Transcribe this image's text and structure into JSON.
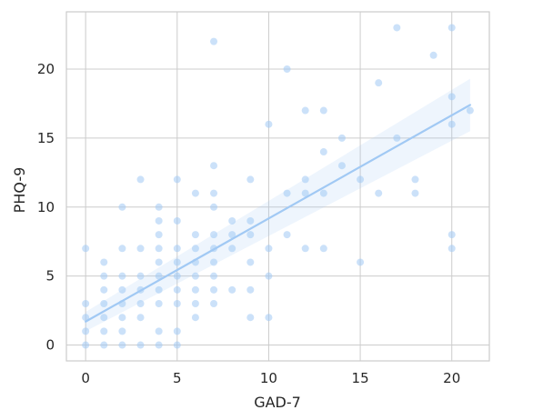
{
  "chart_data": {
    "type": "scatter",
    "title": "",
    "xlabel": "GAD-7",
    "ylabel": "PHQ-9",
    "xlim": [
      -1.05,
      22.05
    ],
    "ylim": [
      -1.15,
      24.15
    ],
    "xticks": [
      0,
      5,
      10,
      15,
      20
    ],
    "yticks": [
      0,
      5,
      10,
      15,
      20
    ],
    "grid": true,
    "points": [
      [
        0,
        7
      ],
      [
        0,
        3
      ],
      [
        0,
        2
      ],
      [
        0,
        1
      ],
      [
        0,
        0
      ],
      [
        1,
        6
      ],
      [
        1,
        5
      ],
      [
        1,
        4
      ],
      [
        1,
        3
      ],
      [
        1,
        2
      ],
      [
        1,
        1
      ],
      [
        1,
        0
      ],
      [
        2,
        10
      ],
      [
        2,
        7
      ],
      [
        2,
        5
      ],
      [
        2,
        4
      ],
      [
        2,
        3
      ],
      [
        2,
        2
      ],
      [
        2,
        1
      ],
      [
        2,
        0
      ],
      [
        3,
        12
      ],
      [
        3,
        7
      ],
      [
        3,
        5
      ],
      [
        3,
        4
      ],
      [
        3,
        3
      ],
      [
        3,
        2
      ],
      [
        3,
        0
      ],
      [
        4,
        10
      ],
      [
        4,
        9
      ],
      [
        4,
        8
      ],
      [
        4,
        7
      ],
      [
        4,
        6
      ],
      [
        4,
        5
      ],
      [
        4,
        4
      ],
      [
        4,
        3
      ],
      [
        4,
        1
      ],
      [
        4,
        0
      ],
      [
        5,
        12
      ],
      [
        5,
        9
      ],
      [
        5,
        7
      ],
      [
        5,
        6
      ],
      [
        5,
        5
      ],
      [
        5,
        4
      ],
      [
        5,
        3
      ],
      [
        5,
        1
      ],
      [
        5,
        0
      ],
      [
        6,
        11
      ],
      [
        6,
        8
      ],
      [
        6,
        7
      ],
      [
        6,
        6
      ],
      [
        6,
        5
      ],
      [
        6,
        4
      ],
      [
        6,
        3
      ],
      [
        6,
        2
      ],
      [
        7,
        22
      ],
      [
        7,
        13
      ],
      [
        7,
        11
      ],
      [
        7,
        10
      ],
      [
        7,
        8
      ],
      [
        7,
        7
      ],
      [
        7,
        6
      ],
      [
        7,
        5
      ],
      [
        7,
        4
      ],
      [
        7,
        3
      ],
      [
        8,
        9
      ],
      [
        8,
        8
      ],
      [
        8,
        7
      ],
      [
        8,
        4
      ],
      [
        9,
        12
      ],
      [
        9,
        9
      ],
      [
        9,
        8
      ],
      [
        9,
        6
      ],
      [
        9,
        4
      ],
      [
        9,
        2
      ],
      [
        10,
        16
      ],
      [
        10,
        7
      ],
      [
        10,
        5
      ],
      [
        10,
        2
      ],
      [
        11,
        20
      ],
      [
        11,
        11
      ],
      [
        11,
        8
      ],
      [
        12,
        17
      ],
      [
        12,
        12
      ],
      [
        12,
        11
      ],
      [
        12,
        7
      ],
      [
        13,
        17
      ],
      [
        13,
        14
      ],
      [
        13,
        11
      ],
      [
        13,
        7
      ],
      [
        14,
        15
      ],
      [
        14,
        13
      ],
      [
        15,
        12
      ],
      [
        15,
        6
      ],
      [
        16,
        19
      ],
      [
        16,
        11
      ],
      [
        17,
        23
      ],
      [
        17,
        15
      ],
      [
        18,
        12
      ],
      [
        18,
        11
      ],
      [
        19,
        21
      ],
      [
        20,
        23
      ],
      [
        20,
        18
      ],
      [
        20,
        16
      ],
      [
        20,
        8
      ],
      [
        20,
        7
      ],
      [
        21,
        17
      ]
    ],
    "regression": {
      "x_start": 0,
      "x_end": 21,
      "y_start": 1.7,
      "y_end": 17.4,
      "ci_lower_start": 1.0,
      "ci_upper_start": 2.4,
      "ci_lower_end": 15.5,
      "ci_upper_end": 19.3
    },
    "colors": {
      "point": "#a1c9f4",
      "line": "#a1c9f4",
      "band": "#a1c9f4",
      "grid": "#cccccc",
      "spine": "#cccccc",
      "text": "#262626",
      "background": "#ffffff"
    }
  }
}
